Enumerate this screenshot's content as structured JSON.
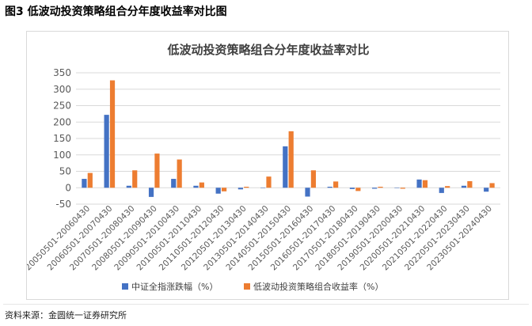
{
  "figure": {
    "caption": "图3  低波动投资策略组合分年度收益率对比图",
    "source": "资料来源：金圆统一证券研究所"
  },
  "colors": {
    "series_1": "#4472c4",
    "series_2": "#ed7d31",
    "grid": "#d9d9d9",
    "axis_text": "#595959"
  },
  "chart_data": {
    "type": "bar",
    "title": "低波动投资策略组合分年度收益率对比",
    "categories": [
      "20050501-20060430",
      "20060501-20070430",
      "20070501-20080430",
      "20080501-20090430",
      "20090501-20100430",
      "20100501-20110430",
      "20110501-20120430",
      "20120501-20130430",
      "20130501-20140430",
      "20140501-20150430",
      "20150501-20160430",
      "20160501-20170430",
      "20170501-20180430",
      "20180501-20190430",
      "20190501-20200430",
      "20200501-20210430",
      "20210501-20220430",
      "20220501-20230430",
      "20230501-20240430"
    ],
    "series": [
      {
        "name": "中证全指涨跌幅（%）",
        "values": [
          27,
          222,
          6,
          -28,
          27,
          6,
          -18,
          -5,
          0,
          126,
          -27,
          3,
          -4,
          -3,
          0,
          25,
          -16,
          6,
          -12
        ]
      },
      {
        "name": "低波动投资策略组合收益率（%）",
        "values": [
          45,
          327,
          53,
          104,
          86,
          16,
          -11,
          3,
          34,
          172,
          53,
          19,
          -10,
          3,
          -3,
          23,
          5,
          20,
          14
        ]
      }
    ],
    "ylim": [
      -50,
      350
    ],
    "yticks": [
      -50,
      0,
      50,
      100,
      150,
      200,
      250,
      300,
      350
    ],
    "grid": true,
    "legend_position": "bottom"
  }
}
